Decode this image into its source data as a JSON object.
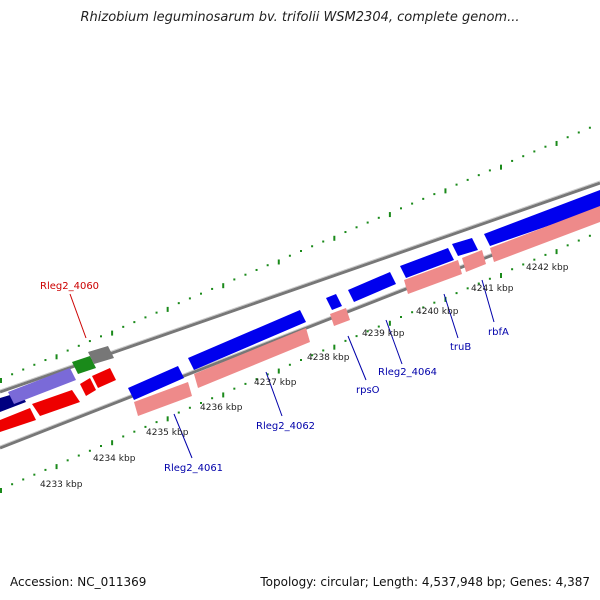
{
  "title": "Rhizobium leguminosarum bv. trifolii WSM2304, complete genom...",
  "footer": {
    "accession": "Accession: NC_011369",
    "summary": "Topology: circular; Length: 4,537,948 bp; Genes: 4,387"
  },
  "colors": {
    "forward_gene": "#0000ee",
    "forward_gene_highlight": "#3b3bff",
    "reverse_gene": "#ee0000",
    "reverse_gene_pale": "#ee8a8a",
    "backbone": "#8f8f8f",
    "tick": "#1a8a1a",
    "forward_label": "#0000aa",
    "reverse_label": "#cc0000"
  },
  "ticks": [
    "4233 kbp",
    "4234 kbp",
    "4235 kbp",
    "4236 kbp",
    "4237 kbp",
    "4238 kbp",
    "4239 kbp",
    "4240 kbp",
    "4241 kbp",
    "4242 kbp"
  ],
  "gene_labels": [
    {
      "text": "Rleg2_4060",
      "strand": "reverse"
    },
    {
      "text": "Rleg2_4061",
      "strand": "forward"
    },
    {
      "text": "Rleg2_4062",
      "strand": "forward"
    },
    {
      "text": "rpsO",
      "strand": "forward"
    },
    {
      "text": "Rleg2_4064",
      "strand": "forward"
    },
    {
      "text": "truB",
      "strand": "forward"
    },
    {
      "text": "rbfA",
      "strand": "forward"
    }
  ]
}
